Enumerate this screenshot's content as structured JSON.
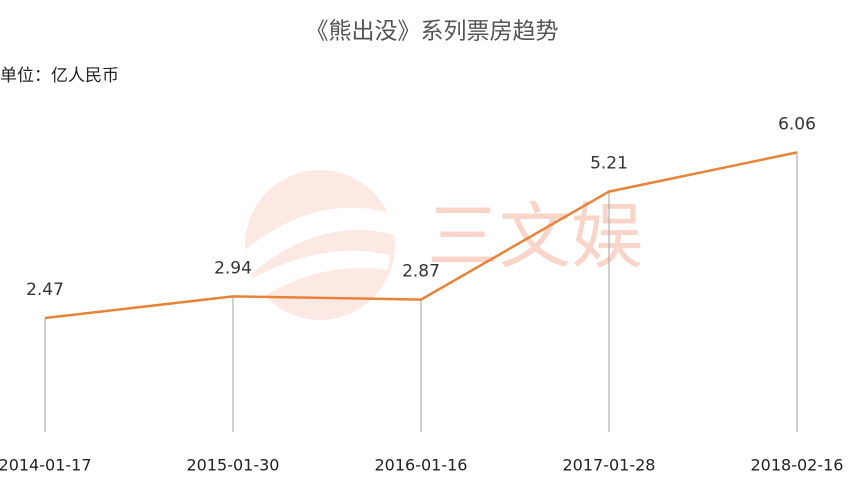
{
  "chart_data": {
    "type": "line",
    "title": "《熊出没》系列票房趋势",
    "subtitle": "单位：亿人民币",
    "watermark": "三文娱",
    "categories": [
      "2014-01-17",
      "2015-01-30",
      "2016-01-16",
      "2017-01-28",
      "2018-02-16"
    ],
    "series": [
      {
        "color": "#e8843a",
        "values": [
          2.47,
          2.94,
          2.87,
          5.21,
          6.06
        ]
      }
    ],
    "ylim": [
      0,
      7
    ],
    "drop_lines": true
  }
}
